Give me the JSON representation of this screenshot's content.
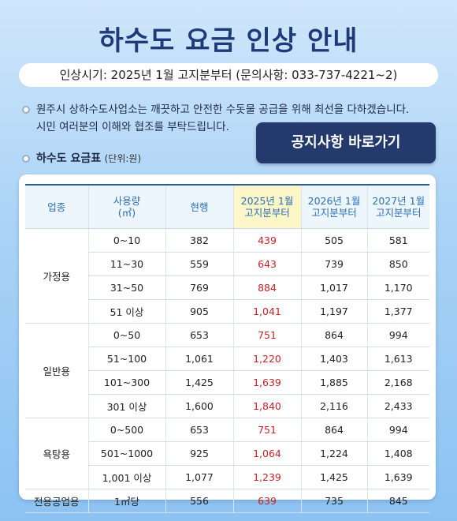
{
  "title": "하수도 요금 인상 안내",
  "info_pill": "인상시기: 2025년 1월 고지분부터 (문의사항: 033-737-4221~2)",
  "notice": {
    "line1": "원주시 상하수도사업소는 깨끗하고 안전한 수돗물 공급을 위해 최선을 다하겠습니다.",
    "line2": "시민 여러분의 이해와 협조를 부탁드립니다."
  },
  "goto_button": "공지사항 바로가기",
  "table_title": "하수도 요금표",
  "table_unit": "(단위:원)",
  "table": {
    "headers": {
      "category": "업종",
      "usage_line1": "사용량",
      "usage_line2": "(㎥)",
      "current": "현행",
      "y2025_line1": "2025년 1월",
      "y2025_line2": "고지분부터",
      "y2026_line1": "2026년 1월",
      "y2026_line2": "고지분부터",
      "y2027_line1": "2027년 1월",
      "y2027_line2": "고지분부터"
    },
    "groups": [
      {
        "category": "가정용",
        "rows": [
          {
            "usage": "0~10",
            "current": "382",
            "y2025": "439",
            "y2026": "505",
            "y2027": "581"
          },
          {
            "usage": "11~30",
            "current": "559",
            "y2025": "643",
            "y2026": "739",
            "y2027": "850"
          },
          {
            "usage": "31~50",
            "current": "769",
            "y2025": "884",
            "y2026": "1,017",
            "y2027": "1,170"
          },
          {
            "usage": "51 이상",
            "current": "905",
            "y2025": "1,041",
            "y2026": "1,197",
            "y2027": "1,377"
          }
        ]
      },
      {
        "category": "일반용",
        "rows": [
          {
            "usage": "0~50",
            "current": "653",
            "y2025": "751",
            "y2026": "864",
            "y2027": "994"
          },
          {
            "usage": "51~100",
            "current": "1,061",
            "y2025": "1,220",
            "y2026": "1,403",
            "y2027": "1,613"
          },
          {
            "usage": "101~300",
            "current": "1,425",
            "y2025": "1,639",
            "y2026": "1,885",
            "y2027": "2,168"
          },
          {
            "usage": "301 이상",
            "current": "1,600",
            "y2025": "1,840",
            "y2026": "2,116",
            "y2027": "2,433"
          }
        ]
      },
      {
        "category": "욕탕용",
        "rows": [
          {
            "usage": "0~500",
            "current": "653",
            "y2025": "751",
            "y2026": "864",
            "y2027": "994"
          },
          {
            "usage": "501~1000",
            "current": "925",
            "y2025": "1,064",
            "y2026": "1,224",
            "y2027": "1,408"
          },
          {
            "usage": "1,001 이상",
            "current": "1,077",
            "y2025": "1,239",
            "y2026": "1,425",
            "y2027": "1,639"
          }
        ]
      },
      {
        "category": "전용공업용",
        "rows": [
          {
            "usage": "1㎥당",
            "current": "556",
            "y2025": "639",
            "y2026": "735",
            "y2027": "845"
          }
        ]
      }
    ]
  },
  "colors": {
    "title": "#1f3a78",
    "button_bg": "#243a6c",
    "header_text": "#2c6fb3",
    "header_bg": "#eef6fd",
    "highlight_header_bg": "#fdf6c8",
    "new_rate_text": "#c41f26"
  }
}
